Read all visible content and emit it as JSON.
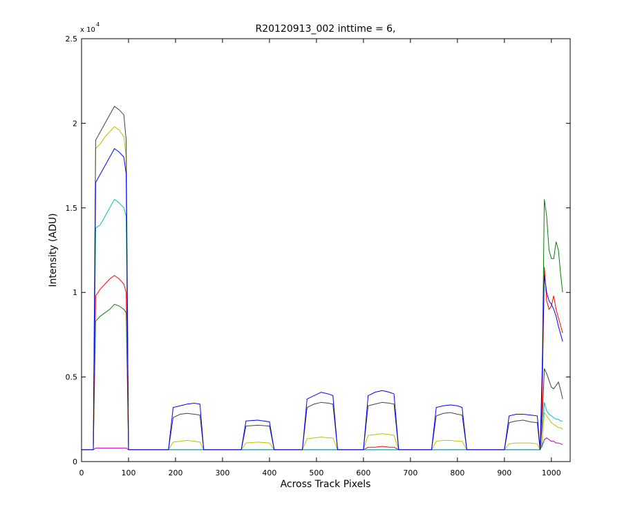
{
  "chart_data": {
    "type": "line",
    "title": "R20120913_002 inttime = 6,",
    "xlabel": "Across Track Pixels",
    "ylabel": "Intensity (ADU)",
    "y_exponent": {
      "base": "x 10",
      "power": "4"
    },
    "xlim": [
      0,
      1040
    ],
    "ylim": [
      0,
      25000
    ],
    "xticks": [
      0,
      100,
      200,
      300,
      400,
      500,
      600,
      700,
      800,
      900,
      1000
    ],
    "yticks": [
      {
        "value": 0,
        "label": "0"
      },
      {
        "value": 5000,
        "label": "0.5"
      },
      {
        "value": 10000,
        "label": "1"
      },
      {
        "value": 15000,
        "label": "1.5"
      },
      {
        "value": 20000,
        "label": "2"
      },
      {
        "value": 25000,
        "label": "2.5"
      }
    ],
    "grid": false,
    "x": [
      0,
      25,
      30,
      40,
      50,
      60,
      70,
      80,
      90,
      95,
      100,
      150,
      185,
      195,
      210,
      225,
      240,
      252,
      260,
      300,
      340,
      350,
      375,
      400,
      410,
      450,
      470,
      480,
      495,
      510,
      525,
      535,
      545,
      590,
      600,
      610,
      625,
      640,
      655,
      665,
      675,
      720,
      745,
      755,
      770,
      785,
      800,
      810,
      820,
      880,
      900,
      910,
      925,
      940,
      955,
      970,
      976,
      980,
      985,
      990,
      995,
      1000,
      1005,
      1010,
      1015,
      1020,
      1024
    ],
    "series": [
      {
        "color": "#008000",
        "values": [
          700,
          700,
          8300,
          8600,
          8800,
          9000,
          9300,
          9200,
          9000,
          8800,
          700,
          700,
          700,
          700,
          700,
          700,
          700,
          700,
          700,
          700,
          700,
          700,
          700,
          700,
          700,
          700,
          700,
          700,
          700,
          700,
          700,
          700,
          700,
          700,
          700,
          700,
          700,
          700,
          700,
          700,
          700,
          700,
          700,
          700,
          700,
          700,
          700,
          700,
          700,
          700,
          700,
          700,
          700,
          700,
          700,
          700,
          700,
          4000,
          15500,
          14500,
          12500,
          12000,
          12000,
          13000,
          12500,
          11000,
          10000
        ]
      },
      {
        "color": "#ff0000",
        "values": [
          700,
          700,
          9800,
          10200,
          10500,
          10800,
          11000,
          10800,
          10500,
          10000,
          700,
          700,
          700,
          700,
          700,
          700,
          700,
          700,
          700,
          700,
          700,
          700,
          700,
          700,
          700,
          700,
          700,
          700,
          700,
          700,
          700,
          700,
          700,
          700,
          700,
          850,
          850,
          900,
          850,
          850,
          700,
          700,
          700,
          700,
          700,
          700,
          700,
          700,
          700,
          700,
          700,
          700,
          700,
          700,
          700,
          700,
          700,
          3000,
          11500,
          9500,
          9000,
          9200,
          9800,
          9000,
          8500,
          8000,
          7600
        ]
      },
      {
        "color": "#bf00bf",
        "values": [
          700,
          700,
          800,
          800,
          800,
          800,
          800,
          800,
          800,
          800,
          700,
          700,
          700,
          700,
          700,
          700,
          700,
          700,
          700,
          700,
          700,
          700,
          700,
          700,
          700,
          700,
          700,
          700,
          700,
          700,
          700,
          700,
          700,
          700,
          700,
          700,
          700,
          700,
          700,
          700,
          700,
          700,
          700,
          700,
          700,
          700,
          700,
          700,
          700,
          700,
          700,
          700,
          700,
          700,
          700,
          700,
          700,
          900,
          1300,
          1400,
          1300,
          1200,
          1200,
          1100,
          1100,
          1050,
          1000
        ]
      },
      {
        "color": "#00bfbf",
        "values": [
          700,
          700,
          13800,
          14000,
          14500,
          15000,
          15500,
          15300,
          15000,
          14500,
          700,
          700,
          700,
          700,
          700,
          700,
          700,
          700,
          700,
          700,
          700,
          700,
          700,
          700,
          700,
          700,
          700,
          700,
          700,
          700,
          700,
          700,
          700,
          700,
          700,
          700,
          700,
          700,
          700,
          700,
          700,
          700,
          700,
          700,
          700,
          700,
          700,
          700,
          700,
          700,
          700,
          700,
          700,
          700,
          700,
          700,
          700,
          1000,
          3500,
          3000,
          2800,
          2700,
          2600,
          2500,
          2500,
          2400,
          2400
        ]
      },
      {
        "color": "#bfbf00",
        "values": [
          700,
          700,
          18500,
          18800,
          19200,
          19500,
          19800,
          19600,
          19200,
          18000,
          700,
          700,
          700,
          1150,
          1200,
          1250,
          1200,
          1150,
          700,
          700,
          700,
          1100,
          1150,
          1100,
          700,
          700,
          700,
          1350,
          1400,
          1450,
          1400,
          1400,
          700,
          700,
          700,
          1550,
          1600,
          1650,
          1600,
          1550,
          700,
          700,
          700,
          1200,
          1250,
          1250,
          1200,
          1200,
          700,
          700,
          700,
          1050,
          1100,
          1100,
          1100,
          1050,
          700,
          1200,
          2900,
          2700,
          2500,
          2300,
          2200,
          2100,
          2000,
          2000,
          1900
        ]
      },
      {
        "color": "#404040",
        "values": [
          700,
          700,
          19000,
          19500,
          20000,
          20500,
          21000,
          20800,
          20500,
          19000,
          700,
          700,
          700,
          2600,
          2800,
          2850,
          2800,
          2750,
          700,
          700,
          700,
          2100,
          2150,
          2100,
          700,
          700,
          700,
          3200,
          3400,
          3500,
          3450,
          3400,
          700,
          700,
          700,
          3300,
          3400,
          3500,
          3450,
          3400,
          700,
          700,
          700,
          2700,
          2850,
          2900,
          2800,
          2750,
          700,
          700,
          700,
          2300,
          2400,
          2450,
          2350,
          2300,
          700,
          2000,
          5500,
          5200,
          4800,
          4400,
          4300,
          4500,
          4700,
          4200,
          3700
        ]
      },
      {
        "color": "#0000ff",
        "values": [
          700,
          700,
          16500,
          17000,
          17500,
          18000,
          18500,
          18300,
          18000,
          17000,
          700,
          700,
          700,
          3200,
          3300,
          3400,
          3450,
          3400,
          700,
          700,
          700,
          2400,
          2450,
          2350,
          700,
          700,
          700,
          3700,
          3900,
          4100,
          4000,
          3900,
          700,
          700,
          700,
          3900,
          4100,
          4200,
          4100,
          4000,
          700,
          700,
          700,
          3200,
          3300,
          3350,
          3300,
          3200,
          700,
          700,
          700,
          2700,
          2800,
          2800,
          2750,
          2700,
          700,
          5000,
          11000,
          10000,
          9500,
          9300,
          9000,
          8600,
          8000,
          7500,
          7100
        ]
      }
    ]
  }
}
